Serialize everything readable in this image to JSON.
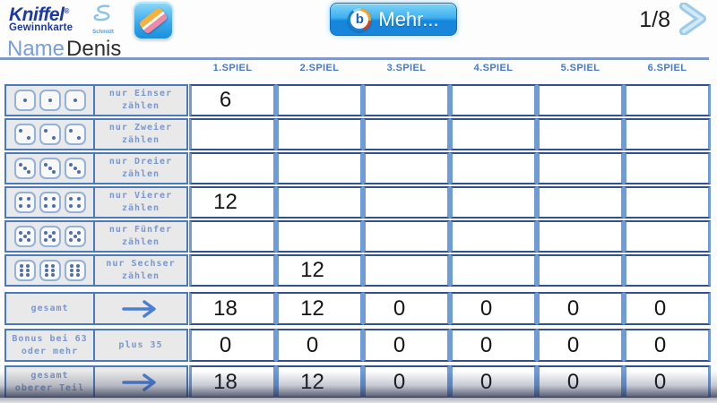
{
  "header": {
    "logo": {
      "title": "Kniffel",
      "registered": "®",
      "subtitle": "Gewinnkarte"
    },
    "schmidt_logo_label": "Schmidt",
    "eraser_icon": "eraser-icon",
    "mehr_button": {
      "logo_letter": "b",
      "label": "Mehr..."
    },
    "page_indicator": "1/8",
    "next_icon": "chevron-right-icon"
  },
  "player": {
    "name_label": "Name",
    "name_value": "Denis"
  },
  "scorecard": {
    "columns": [
      "1.SPIEL",
      "2.SPIEL",
      "3.SPIEL",
      "4.SPIEL",
      "5.SPIEL",
      "6.SPIEL"
    ],
    "upper_section": [
      {
        "dice_value": 1,
        "dice_count": 3,
        "label": [
          "nur Einser",
          "zählen"
        ],
        "scores": [
          "6",
          "",
          "",
          "",
          "",
          ""
        ]
      },
      {
        "dice_value": 2,
        "dice_count": 3,
        "label": [
          "nur Zweier",
          "zählen"
        ],
        "scores": [
          "",
          "",
          "",
          "",
          "",
          ""
        ]
      },
      {
        "dice_value": 3,
        "dice_count": 3,
        "label": [
          "nur Dreier",
          "zählen"
        ],
        "scores": [
          "",
          "",
          "",
          "",
          "",
          ""
        ]
      },
      {
        "dice_value": 4,
        "dice_count": 3,
        "label": [
          "nur Vierer",
          "zählen"
        ],
        "scores": [
          "12",
          "",
          "",
          "",
          "",
          ""
        ]
      },
      {
        "dice_value": 5,
        "dice_count": 3,
        "label": [
          "nur Fünfer",
          "zählen"
        ],
        "scores": [
          "",
          "",
          "",
          "",
          "",
          ""
        ]
      },
      {
        "dice_value": 6,
        "dice_count": 3,
        "label": [
          "nur Sechser",
          "zählen"
        ],
        "scores": [
          "",
          "12",
          "",
          "",
          "",
          ""
        ]
      }
    ],
    "summary_section": [
      {
        "label": [
          "gesamt"
        ],
        "annotation_type": "arrow",
        "annotation_text": "",
        "scores": [
          "18",
          "12",
          "0",
          "0",
          "0",
          "0"
        ]
      },
      {
        "label": [
          "Bonus bei 63",
          "oder mehr"
        ],
        "annotation_type": "text",
        "annotation_text": "plus 35",
        "scores": [
          "0",
          "0",
          "0",
          "0",
          "0",
          "0"
        ]
      },
      {
        "label": [
          "gesamt",
          "oberer Teil"
        ],
        "annotation_type": "arrow",
        "annotation_text": "",
        "scores": [
          "18",
          "12",
          "0",
          "0",
          "0",
          "0"
        ]
      }
    ]
  },
  "colors": {
    "brand_blue": "#1d3a9e",
    "accent_blue": "#4a7abc",
    "cell_border_light": "#6f9bd8",
    "cell_border_dark": "#31528c",
    "label_text_blue": "#7b97cc",
    "column_header_blue": "#4a7ac2",
    "name_label_blue": "#7a9ed8",
    "underline_blue": "#8098c8",
    "button_blue_top": "#7fd4f8",
    "button_blue_bottom": "#1a86d9",
    "score_text": "#151515",
    "panel_gray": "#e9e9e9",
    "arrow_blue": "#4a7fd4"
  }
}
